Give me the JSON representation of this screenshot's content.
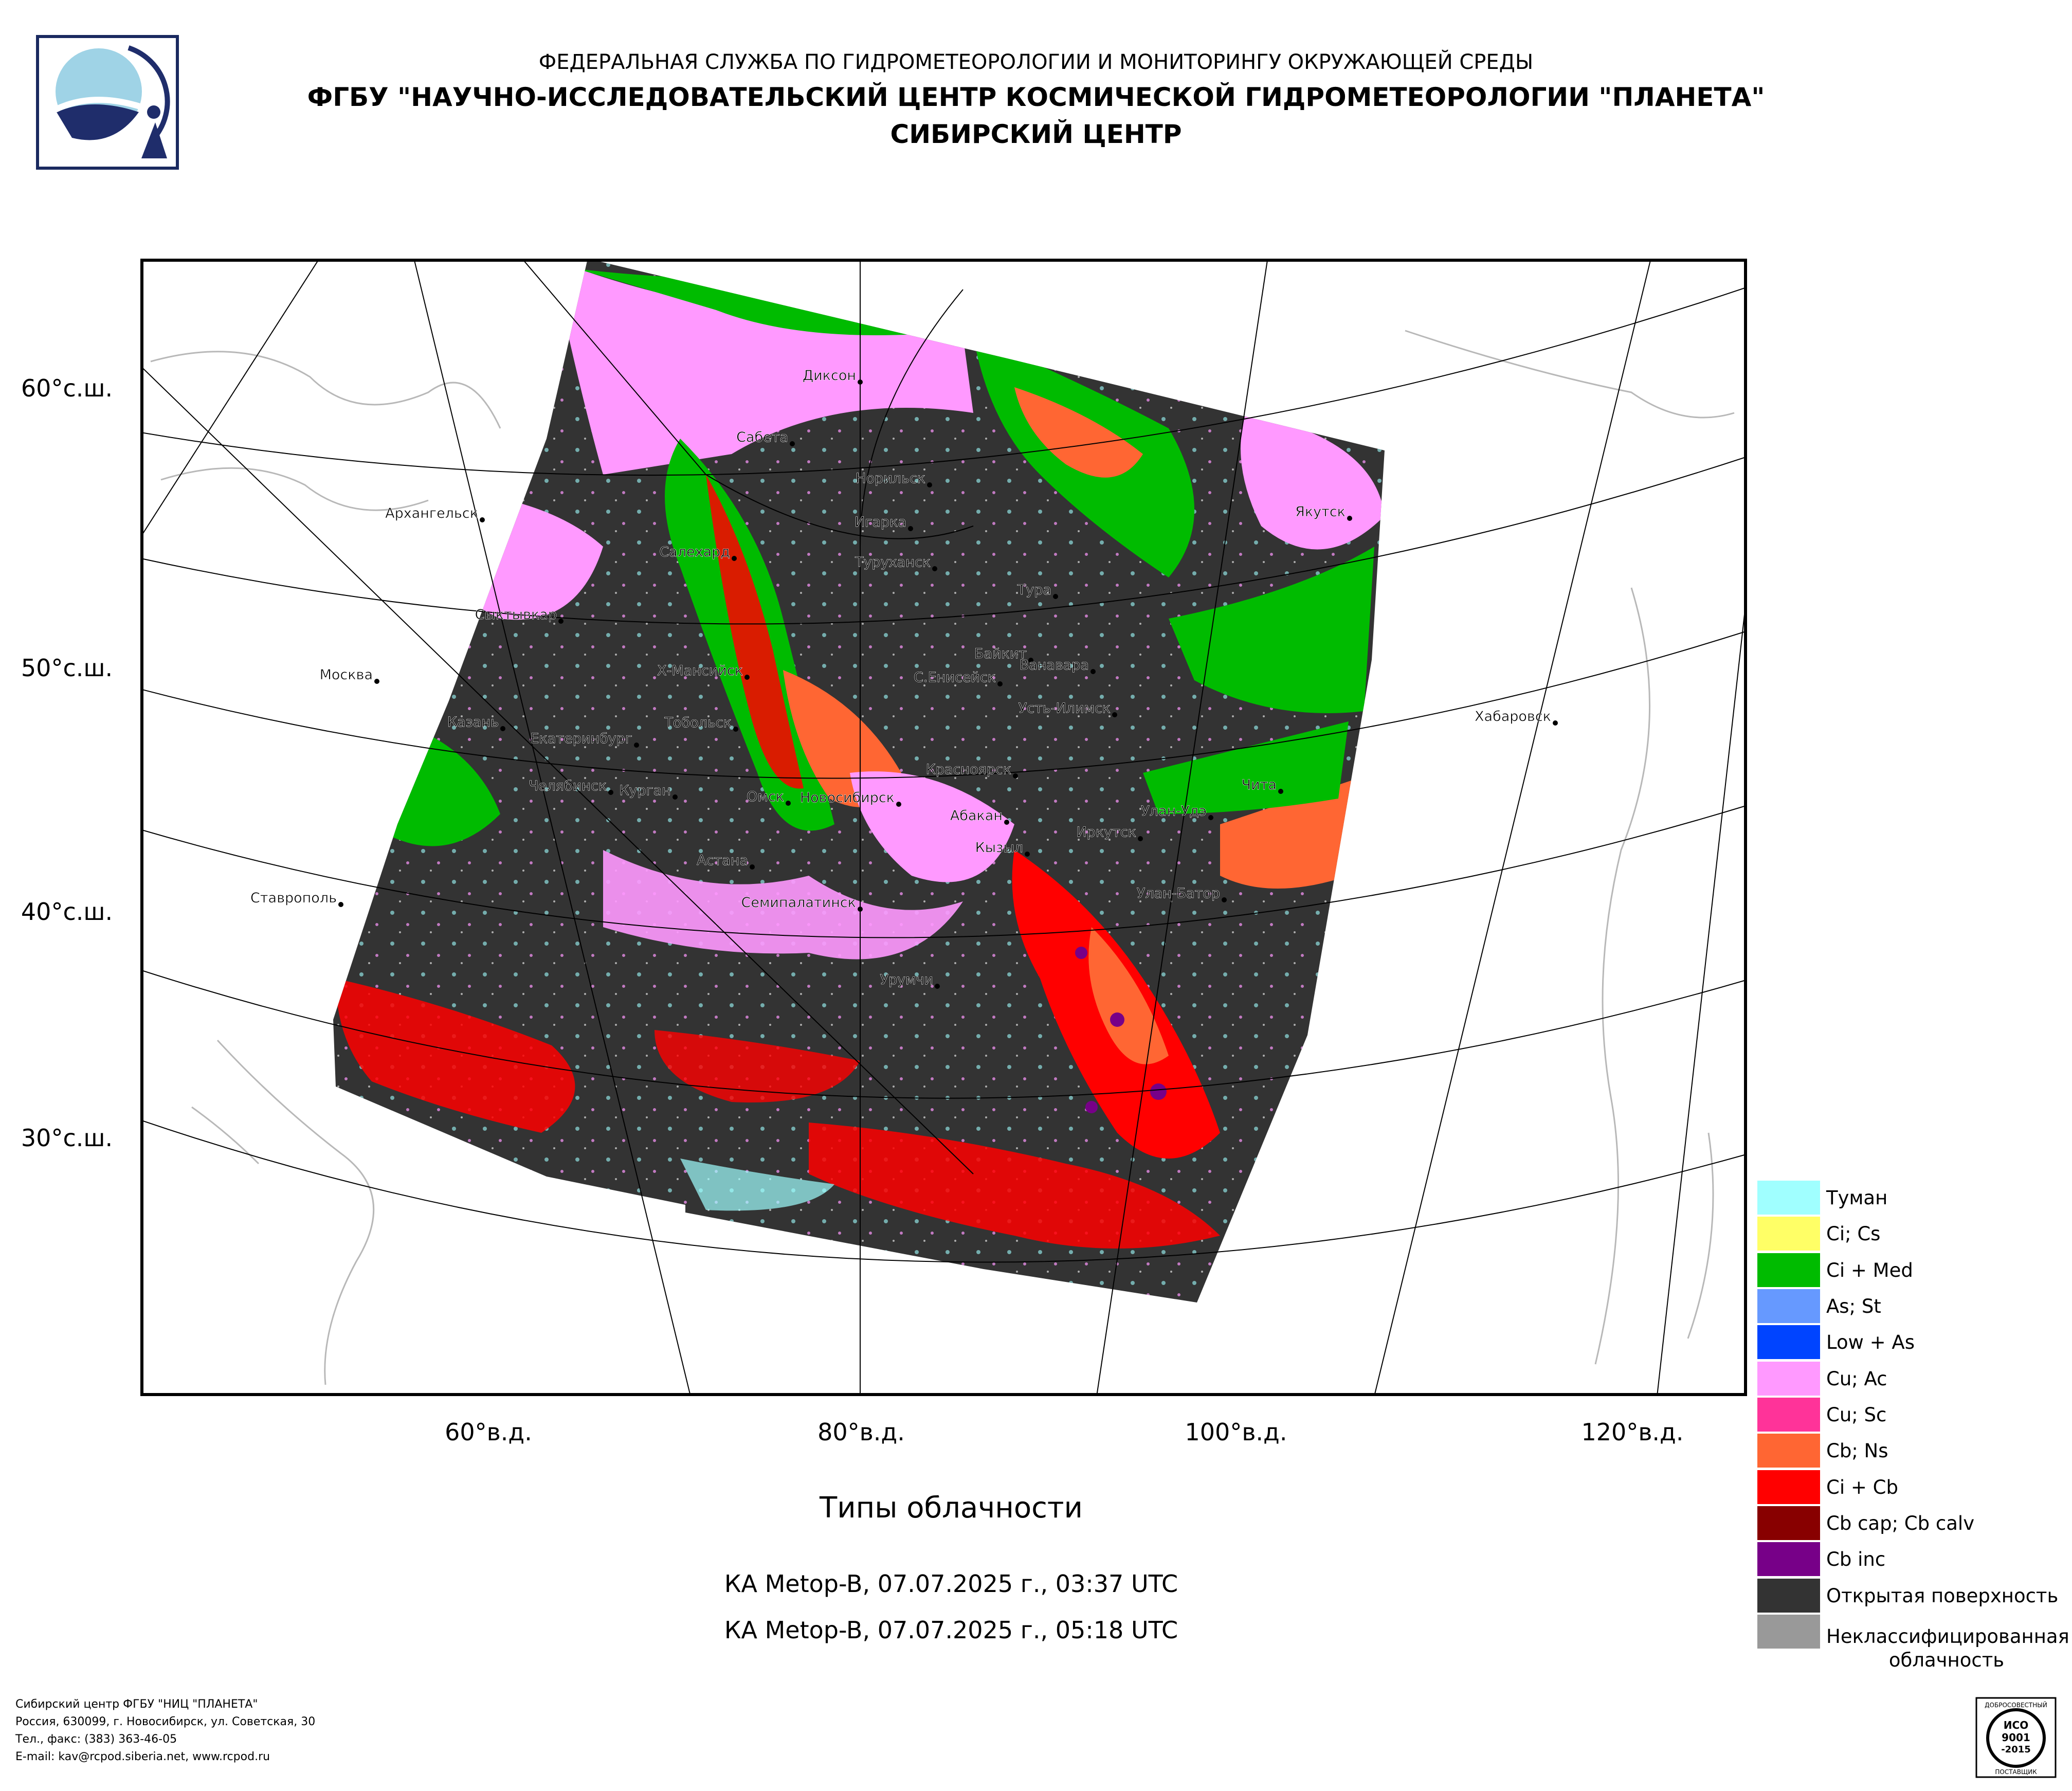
{
  "header": {
    "line1": "ФЕДЕРАЛЬНАЯ СЛУЖБА ПО ГИДРОМЕТЕОРОЛОГИИ И МОНИТОРИНГУ ОКРУЖАЮЩЕЙ СРЕДЫ",
    "line2": "ФГБУ \"НАУЧНО-ИССЛЕДОВАТЕЛЬСКИЙ ЦЕНТР КОСМИЧЕСКОЙ ГИДРОМЕТЕОРОЛОГИИ \"ПЛАНЕТА\"",
    "line3": "СИБИРСКИЙ ЦЕНТР"
  },
  "axes": {
    "lat_labels": [
      "60°с.ш.",
      "50°с.ш.",
      "40°с.ш.",
      "30°с.ш."
    ],
    "lon_labels": [
      "60°в.д.",
      "80°в.д.",
      "100°в.д.",
      "120°в.д."
    ]
  },
  "cities": [
    "Диксон",
    "Сабета",
    "Норильск",
    "Архангельск",
    "Игарка",
    "Салехард",
    "Туруханск",
    "Якутск",
    "Тура",
    "Сыктывкар",
    "Байкит",
    "Ванавара",
    "Москва",
    "Х-Мансийск",
    "С.Енисейск",
    "Усть-Илимск",
    "Хабаровск",
    "Казань",
    "Тобольск",
    "Екатеринбург",
    "Красноярск",
    "Челябинск",
    "Чита",
    "Курган",
    "Омск",
    "Новосибирск",
    "Улан-Удэ",
    "Абакан",
    "Иркутск",
    "Кызыл",
    "Астана",
    "Ставрополь",
    "Улан-Батор",
    "Семипалатинск",
    "Урумчи"
  ],
  "chart_title": "Типы облачности",
  "passes": [
    "КА Metop-B, 07.07.2025 г., 03:37 UTC",
    "КА Metop-B, 07.07.2025 г., 05:18 UTC"
  ],
  "legend": [
    {
      "label": "Туман",
      "color": "#a0ffff"
    },
    {
      "label": "Ci; Cs",
      "color": "#ffff66"
    },
    {
      "label": "Ci + Med",
      "color": "#00bb00"
    },
    {
      "label": "As; St",
      "color": "#6699ff"
    },
    {
      "label": "Low + As",
      "color": "#0044ff"
    },
    {
      "label": "Cu; Ac",
      "color": "#ff99ff"
    },
    {
      "label": "Cu; Sc",
      "color": "#ff3399"
    },
    {
      "label": "Cb; Ns",
      "color": "#ff6633"
    },
    {
      "label": "Ci + Cb",
      "color": "#ff0000"
    },
    {
      "label": "Cb cap; Cb calv",
      "color": "#880000"
    },
    {
      "label": "Cb inc",
      "color": "#770088"
    },
    {
      "label": "Открытая поверхность",
      "color": "#333333"
    },
    {
      "label": "Неклассифицированная облачность",
      "color": "#999999"
    }
  ],
  "footer": [
    "Сибирский центр ФГБУ \"НИЦ \"ПЛАНЕТА\"",
    "Россия, 630099, г. Новосибирск, ул. Советская, 30",
    "Тел., факс: (383) 363-46-05",
    "E-mail: kav@rcpod.siberia.net, www.rcpod.ru"
  ],
  "badge": {
    "top": "ДОБРОСОВЕСТНЫЙ",
    "iso1": "ИСО",
    "iso2": "9001",
    "iso3": "-2015",
    "bottom": "ПОСТАВЩИК"
  }
}
